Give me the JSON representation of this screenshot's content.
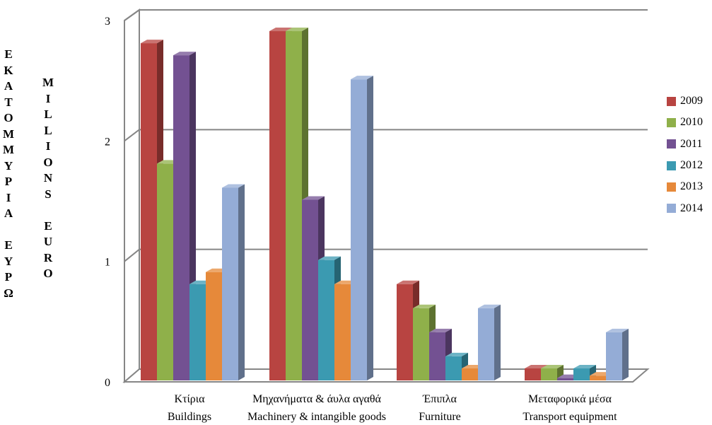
{
  "chart_data": {
    "type": "bar",
    "three_d": true,
    "categories": [
      [
        "Κτίρια",
        "Buildings"
      ],
      [
        "Μηχανήματα & άυλα αγαθά",
        "Machinery & intangible goods"
      ],
      [
        "Έπιπλα",
        "Furniture"
      ],
      [
        "Μεταφορικά μέσα",
        "Transport equipment"
      ]
    ],
    "series": [
      {
        "name": "2009",
        "color": "#b84441",
        "values": [
          2.8,
          2.9,
          0.8,
          0.1
        ]
      },
      {
        "name": "2010",
        "color": "#8fb04a",
        "values": [
          1.8,
          2.9,
          0.6,
          0.1
        ]
      },
      {
        "name": "2011",
        "color": "#735192",
        "values": [
          2.7,
          1.5,
          0.4,
          0.02
        ]
      },
      {
        "name": "2012",
        "color": "#3b9ab1",
        "values": [
          0.8,
          1.0,
          0.2,
          0.1
        ]
      },
      {
        "name": "2013",
        "color": "#e6893a",
        "values": [
          0.9,
          0.8,
          0.1,
          0.04
        ]
      },
      {
        "name": "2014",
        "color": "#94acd6",
        "values": [
          1.6,
          2.5,
          0.6,
          0.4
        ]
      }
    ],
    "ylim": [
      0,
      3
    ],
    "yticks": [
      "0",
      "1",
      "2",
      "3"
    ],
    "ylabel_greek": [
      "Ε",
      "Κ",
      "Α",
      "Τ",
      "Ο",
      "Μ",
      "Μ",
      "Υ",
      "Ρ",
      "Ι",
      "Α",
      "",
      "Ε",
      "Υ",
      "Ρ",
      "Ω"
    ],
    "ylabel_english": [
      "M",
      "I",
      "L",
      "L",
      "I",
      "O",
      "N",
      "S",
      "",
      "E",
      "U",
      "R",
      "O"
    ],
    "grid": true,
    "legend_position": "right"
  }
}
